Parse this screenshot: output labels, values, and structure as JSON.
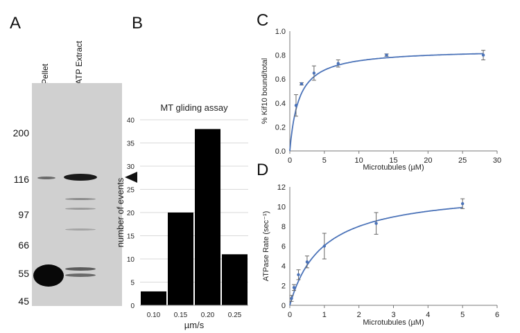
{
  "panels": {
    "a": "A",
    "b": "B",
    "c": "C",
    "d": "D"
  },
  "gel": {
    "lanes": [
      "Pellet",
      "ATP Extract"
    ],
    "markers": [
      "200",
      "116",
      "97",
      "66",
      "55",
      "45"
    ],
    "colors": {
      "background": "#d0d0d0",
      "band": "#111111"
    }
  },
  "chart_data": [
    {
      "type": "bar",
      "title": "MT gliding assay",
      "xlabel": "µm/s",
      "ylabel": "number of events",
      "categories": [
        "0.10",
        "0.15",
        "0.20",
        "0.25"
      ],
      "values": [
        3,
        20,
        38,
        11
      ],
      "ylim": [
        0,
        40
      ],
      "yticks": [
        "0",
        "5",
        "10",
        "15",
        "20",
        "25",
        "30",
        "35",
        "40"
      ],
      "grid": true,
      "color": "#000000"
    },
    {
      "type": "scatter",
      "title": "",
      "xlabel": "Microtubules (µM)",
      "ylabel": "% Kif10 bound/total",
      "xlim": [
        0,
        30
      ],
      "ylim": [
        0,
        1.0
      ],
      "xticks": [
        "0",
        "5",
        "10",
        "15",
        "20",
        "25",
        "30"
      ],
      "yticks": [
        "0.0",
        "0.2",
        "0.4",
        "0.6",
        "0.8",
        "1.0"
      ],
      "x": [
        0.9,
        1.7,
        3.5,
        7,
        14,
        28
      ],
      "y": [
        0.38,
        0.56,
        0.65,
        0.73,
        0.8,
        0.8
      ],
      "err": [
        0.09,
        0.01,
        0.06,
        0.03,
        0.01,
        0.04
      ],
      "fit": {
        "model": "hyperbolic",
        "ymax": 0.85,
        "kd": 1.3
      },
      "color": "#4a72b8"
    },
    {
      "type": "scatter",
      "title": "",
      "xlabel": "Microtubules (µM)",
      "ylabel": "ATPase Rate (sec⁻¹)",
      "xlim": [
        0,
        6
      ],
      "ylim": [
        0,
        12
      ],
      "xticks": [
        "0",
        "1",
        "2",
        "3",
        "4",
        "5",
        "6"
      ],
      "yticks": [
        "0",
        "2",
        "4",
        "6",
        "8",
        "10",
        "12"
      ],
      "x": [
        0.05,
        0.12,
        0.25,
        0.5,
        1.0,
        2.5,
        5.0
      ],
      "y": [
        0.7,
        1.8,
        3.1,
        4.4,
        6.0,
        8.3,
        10.3
      ],
      "err": [
        0.3,
        0.3,
        0.5,
        0.6,
        1.3,
        1.1,
        0.5
      ],
      "fit": {
        "model": "hyperbolic",
        "ymax": 11.8,
        "kd": 0.95
      },
      "color": "#4a72b8"
    }
  ]
}
